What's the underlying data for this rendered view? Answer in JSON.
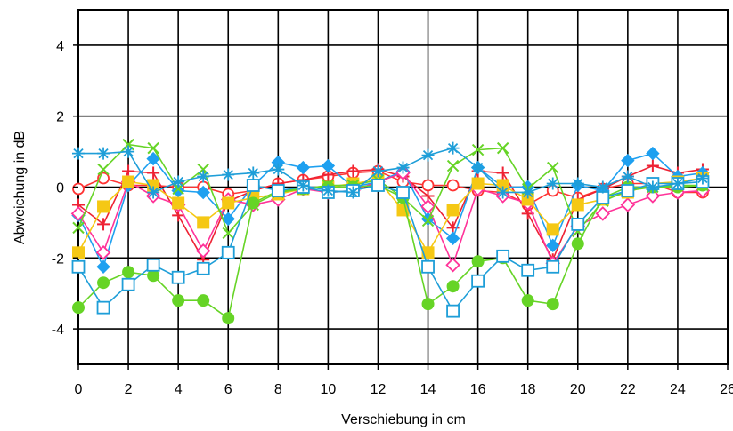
{
  "chart_data": {
    "type": "line",
    "title": "",
    "xlabel": "Verschiebung in cm",
    "ylabel": "Abweichung in dB",
    "xlim": [
      0,
      26
    ],
    "ylim": [
      -5,
      5
    ],
    "xticks": [
      0,
      2,
      4,
      6,
      8,
      10,
      12,
      14,
      16,
      18,
      20,
      22,
      24,
      26
    ],
    "yticks": [
      -4,
      -2,
      0,
      2,
      4
    ],
    "xtick_labels": [
      "0",
      "2",
      "4",
      "6",
      "8",
      "10",
      "12",
      "14",
      "16",
      "18",
      "20",
      "22",
      "24",
      "26"
    ],
    "ytick_labels": [
      "-4",
      "-2",
      "0",
      "2",
      "4"
    ],
    "grid": true,
    "legend": "none",
    "series": [
      {
        "marker": "circle-open",
        "color": "#ff3333",
        "values": [
          -0.05,
          0.25,
          0.05,
          0.05,
          0.0,
          0.0,
          -0.2,
          -0.1,
          0.1,
          0.2,
          0.3,
          0.4,
          0.45,
          0.15,
          0.05,
          0.05,
          -0.1,
          -0.15,
          -0.5,
          -0.1,
          -0.3,
          -0.05,
          0.1,
          0.1,
          -0.15,
          -0.15
        ]
      },
      {
        "marker": "plus",
        "color": "#ee2233",
        "values": [
          -0.5,
          -1.05,
          0.45,
          0.4,
          -0.8,
          -2.05,
          -0.4,
          -0.1,
          0.1,
          0.2,
          0.35,
          0.45,
          0.5,
          0.3,
          -0.25,
          -1.15,
          0.45,
          0.4,
          -0.75,
          -2.05,
          -0.35,
          -0.05,
          0.3,
          0.6,
          0.4,
          0.5
        ]
      },
      {
        "marker": "diamond-filled",
        "color": "#1ea0f0",
        "values": [
          -0.8,
          -2.25,
          0.05,
          0.8,
          -0.1,
          -0.15,
          -0.9,
          0.05,
          0.7,
          0.55,
          0.6,
          0.0,
          0.15,
          0.45,
          -0.9,
          -1.45,
          0.55,
          0.0,
          0.0,
          -1.65,
          0.05,
          -0.1,
          0.75,
          0.95,
          0.3,
          0.4
        ]
      },
      {
        "marker": "diamond-open",
        "color": "#ff3399",
        "values": [
          -0.75,
          -1.85,
          0.15,
          -0.25,
          -0.5,
          -1.8,
          -0.35,
          -0.5,
          -0.35,
          -0.05,
          -0.15,
          -0.1,
          0.15,
          0.4,
          -0.55,
          -2.2,
          -0.05,
          -0.25,
          -0.45,
          -2.15,
          -1.1,
          -0.75,
          -0.5,
          -0.25,
          -0.15,
          -0.1
        ]
      },
      {
        "marker": "square-filled",
        "color": "#f5c814",
        "values": [
          -1.85,
          -0.55,
          0.15,
          0.05,
          -0.45,
          -1.0,
          -0.45,
          -0.3,
          -0.2,
          -0.05,
          0.0,
          0.1,
          0.2,
          -0.65,
          -1.85,
          -0.65,
          0.1,
          0.05,
          -0.35,
          -1.2,
          -0.5,
          -0.35,
          -0.15,
          0.1,
          0.15,
          0.25
        ]
      },
      {
        "marker": "x",
        "color": "#66d426",
        "values": [
          -1.15,
          0.5,
          1.2,
          1.1,
          -0.05,
          0.5,
          -1.3,
          -0.5,
          -0.15,
          -0.05,
          0.05,
          0.05,
          0.2,
          -0.3,
          -0.95,
          0.6,
          1.05,
          1.1,
          -0.05,
          0.55,
          -1.25,
          -0.4,
          -0.1,
          0.0,
          0.05,
          0.05
        ]
      },
      {
        "marker": "circle-filled",
        "color": "#66d426",
        "values": [
          -3.4,
          -2.7,
          -2.4,
          -2.5,
          -3.2,
          -3.2,
          -3.7,
          -0.45,
          -0.1,
          -0.05,
          0.0,
          0.0,
          0.05,
          -0.3,
          -3.3,
          -2.8,
          -2.1,
          -2.0,
          -3.2,
          -3.3,
          -1.6,
          -0.3,
          0.0,
          0.0,
          0.0,
          0.05
        ]
      },
      {
        "marker": "square-open",
        "color": "#1e9ed8",
        "values": [
          -2.25,
          -3.4,
          -2.75,
          -2.2,
          -2.55,
          -2.3,
          -1.85,
          0.05,
          -0.1,
          0.0,
          -0.15,
          -0.1,
          0.05,
          -0.15,
          -2.25,
          -3.5,
          -2.65,
          -1.95,
          -2.35,
          -2.25,
          -1.05,
          -0.3,
          -0.1,
          0.1,
          0.1,
          0.15
        ]
      },
      {
        "marker": "asterisk",
        "color": "#1e9ed8",
        "values": [
          0.95,
          0.95,
          1.0,
          -0.15,
          0.15,
          0.3,
          0.35,
          0.4,
          0.5,
          0.05,
          -0.1,
          -0.15,
          0.45,
          0.55,
          0.9,
          1.1,
          0.55,
          -0.15,
          -0.15,
          0.1,
          0.1,
          0.0,
          0.3,
          0.0,
          0.1,
          0.25
        ]
      }
    ]
  }
}
